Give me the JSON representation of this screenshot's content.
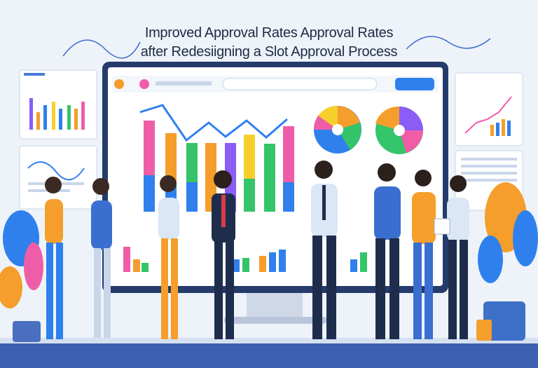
{
  "title": {
    "line1": "Improved Approval Rates  Approval Rates",
    "line2": "after Redesiigning a Slot Approval Process"
  },
  "colors": {
    "background": "#eef3f9",
    "monitor_frame": "#243b6b",
    "accent_blue": "#2f80ed",
    "orange": "#f59e2b",
    "green": "#34c46a",
    "yellow": "#f7cf2d",
    "pink": "#ef5da8",
    "purple": "#8b5cf6",
    "floor": "#3d5fb0"
  },
  "icons": [
    "monitor-icon",
    "pie-chart-icon",
    "bar-chart-icon",
    "line-chart-icon",
    "plant-icon",
    "person-icon",
    "clipboard-icon"
  ]
}
